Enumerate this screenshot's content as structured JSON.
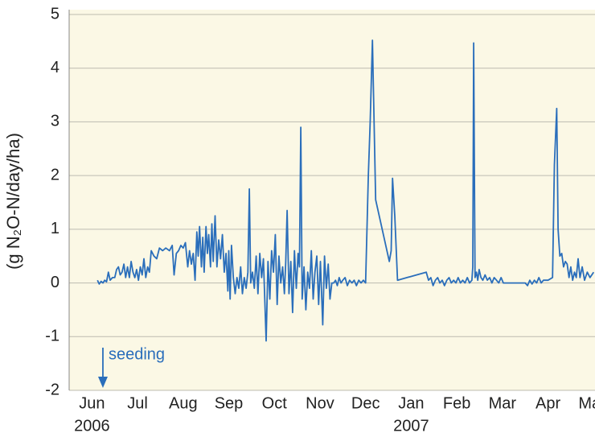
{
  "chart_data": {
    "type": "line",
    "y_label": "(g N₂O-N/day/ha)",
    "annotation": {
      "text": "seeding",
      "x": 0.74
    },
    "color": "#2a6ebb",
    "grid": true,
    "xlim": [
      0,
      11.53
    ],
    "ylim": [
      -2,
      5
    ],
    "yticks": [
      -2,
      -1,
      0,
      1,
      2,
      3,
      4,
      5
    ],
    "xticks": [
      {
        "value": 0.5,
        "label": "Jun"
      },
      {
        "value": 1.5,
        "label": "Jul"
      },
      {
        "value": 2.5,
        "label": "Aug"
      },
      {
        "value": 3.5,
        "label": "Sep"
      },
      {
        "value": 4.5,
        "label": "Oct"
      },
      {
        "value": 5.5,
        "label": "Nov"
      },
      {
        "value": 6.5,
        "label": "Dec"
      },
      {
        "value": 7.5,
        "label": "Jan"
      },
      {
        "value": 8.5,
        "label": "Feb"
      },
      {
        "value": 9.5,
        "label": "Mar"
      },
      {
        "value": 10.5,
        "label": "Apr"
      },
      {
        "value": 11.5,
        "label": "May"
      }
    ],
    "year_labels": [
      {
        "value": 0.5,
        "label": "2006"
      },
      {
        "value": 7.5,
        "label": "2007"
      }
    ],
    "x": [
      0.62,
      0.66,
      0.7,
      0.74,
      0.78,
      0.82,
      0.86,
      0.9,
      0.95,
      1.0,
      1.04,
      1.08,
      1.12,
      1.16,
      1.2,
      1.24,
      1.28,
      1.32,
      1.36,
      1.4,
      1.44,
      1.48,
      1.52,
      1.56,
      1.6,
      1.64,
      1.68,
      1.72,
      1.76,
      1.8,
      1.86,
      1.92,
      1.98,
      2.05,
      2.12,
      2.2,
      2.26,
      2.3,
      2.35,
      2.4,
      2.45,
      2.5,
      2.55,
      2.6,
      2.64,
      2.68,
      2.72,
      2.76,
      2.8,
      2.83,
      2.86,
      2.9,
      2.93,
      2.96,
      3.0,
      3.03,
      3.06,
      3.1,
      3.13,
      3.16,
      3.2,
      3.24,
      3.28,
      3.32,
      3.36,
      3.4,
      3.44,
      3.48,
      3.5,
      3.53,
      3.56,
      3.6,
      3.64,
      3.68,
      3.72,
      3.76,
      3.8,
      3.84,
      3.88,
      3.92,
      3.95,
      3.98,
      4.02,
      4.06,
      4.1,
      4.14,
      4.18,
      4.22,
      4.26,
      4.29,
      4.32,
      4.36,
      4.4,
      4.44,
      4.48,
      4.52,
      4.56,
      4.6,
      4.64,
      4.68,
      4.72,
      4.75,
      4.78,
      4.82,
      4.86,
      4.9,
      4.94,
      4.98,
      5.02,
      5.05,
      5.08,
      5.11,
      5.15,
      5.19,
      5.23,
      5.27,
      5.31,
      5.35,
      5.39,
      5.43,
      5.47,
      5.51,
      5.56,
      5.6,
      5.64,
      5.68,
      5.72,
      5.76,
      5.8,
      5.84,
      5.88,
      5.92,
      5.96,
      6.0,
      6.05,
      6.1,
      6.15,
      6.2,
      6.25,
      6.3,
      6.35,
      6.4,
      6.45,
      6.5,
      6.56,
      6.6,
      6.65,
      6.72,
      7.02,
      7.06,
      7.09,
      7.14,
      7.2,
      7.83,
      7.88,
      7.93,
      7.98,
      8.03,
      8.08,
      8.13,
      8.18,
      8.23,
      8.28,
      8.33,
      8.38,
      8.43,
      8.48,
      8.53,
      8.58,
      8.63,
      8.68,
      8.73,
      8.78,
      8.83,
      8.85,
      8.87,
      8.9,
      8.93,
      8.96,
      8.99,
      9.03,
      9.07,
      9.12,
      9.17,
      9.22,
      9.27,
      9.32,
      9.37,
      9.42,
      9.47,
      9.52,
      9.6,
      10.0,
      10.05,
      10.1,
      10.15,
      10.2,
      10.25,
      10.3,
      10.35,
      10.4,
      10.5,
      10.6,
      10.64,
      10.69,
      10.72,
      10.76,
      10.8,
      10.84,
      10.88,
      10.92,
      10.96,
      11.0,
      11.04,
      11.08,
      11.12,
      11.16,
      11.2,
      11.25,
      11.3,
      11.36,
      11.42,
      11.5
    ],
    "values": [
      0.05,
      -0.02,
      0.03,
      0,
      0.05,
      0.02,
      0.2,
      0.05,
      0.1,
      0.1,
      0.25,
      0.3,
      0.15,
      0.2,
      0.35,
      0.1,
      0.3,
      0.1,
      0.4,
      0.2,
      0.1,
      0.25,
      0.05,
      0.3,
      0.15,
      0.45,
      0.1,
      0.3,
      0.2,
      0.6,
      0.5,
      0.45,
      0.65,
      0.6,
      0.65,
      0.6,
      0.7,
      0.15,
      0.55,
      0.6,
      0.7,
      0.65,
      0.75,
      0.3,
      0.6,
      0.35,
      0.55,
      0.05,
      0.95,
      0.5,
      1.05,
      0.3,
      0.85,
      0.2,
      1.05,
      0.55,
      0.9,
      0.3,
      1.1,
      0.4,
      1.25,
      0.3,
      0.8,
      0.45,
      0.9,
      0.2,
      0.55,
      -0.15,
      0.6,
      -0.3,
      0.7,
      0.1,
      -0.2,
      0.1,
      -0.1,
      0.3,
      -0.2,
      0.1,
      -0.1,
      0.2,
      1.75,
      0.0,
      0.2,
      -0.1,
      0.5,
      -0.2,
      0.55,
      0.1,
      0.45,
      -0.3,
      -1.08,
      0.4,
      -0.3,
      0.6,
      0.2,
      0.9,
      -0.4,
      0.5,
      0.0,
      0.3,
      -0.2,
      0.4,
      1.35,
      -0.2,
      0.4,
      -0.55,
      0.6,
      -0.1,
      0.55,
      0.3,
      2.9,
      -0.3,
      0.3,
      -0.5,
      0.2,
      -0.1,
      0.6,
      -0.3,
      0.2,
      0.5,
      -0.4,
      0.4,
      -0.78,
      0.5,
      -0.1,
      0.35,
      -0.3,
      0.0,
      0.0,
      0.05,
      -0.05,
      0.1,
      0.0,
      0.05,
      0.1,
      -0.05,
      0.05,
      0.0,
      0.05,
      -0.05,
      0.05,
      0.0,
      0.05,
      0.0,
      2.0,
      3.0,
      4.52,
      1.55,
      0.4,
      0.6,
      1.95,
      1.25,
      0.05,
      0.2,
      0.05,
      0.1,
      -0.05,
      0.05,
      0.1,
      0.0,
      0.05,
      -0.05,
      0.05,
      0.1,
      0.0,
      0.05,
      0.0,
      0.1,
      0.0,
      0.05,
      0.0,
      0.1,
      0.0,
      0.05,
      0.3,
      4.47,
      0.1,
      0.2,
      0.05,
      0.25,
      0.1,
      0.05,
      0.15,
      0.05,
      0.1,
      0.0,
      0.1,
      0.05,
      0.0,
      0.1,
      0.0,
      0.0,
      0.0,
      -0.05,
      0.05,
      -0.02,
      0.05,
      0.0,
      0.1,
      0.0,
      0.05,
      0.05,
      0.1,
      2.2,
      3.25,
      1.0,
      0.5,
      0.55,
      0.3,
      0.4,
      0.35,
      0.1,
      0.3,
      0.05,
      0.2,
      0.1,
      0.45,
      0.1,
      0.3,
      0.05,
      0.2,
      0.1,
      0.2
    ]
  }
}
